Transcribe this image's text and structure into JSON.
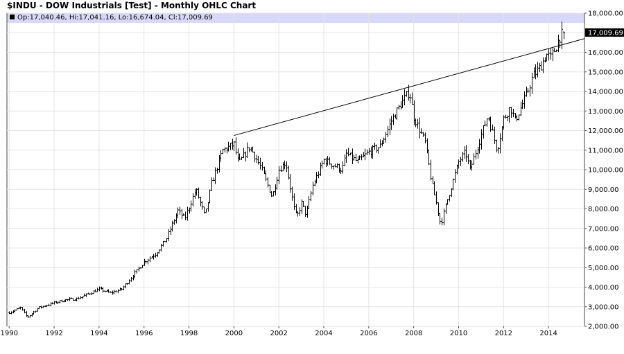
{
  "header": {
    "title": "$INDU - DOW Industrials [Test] - Monthly OHLC Chart",
    "ohlc_text": "Op:17,040.46, Hi:17,041.16, Lo:16,674.04, Cl:17,009.69"
  },
  "chart_data": {
    "type": "ohlc",
    "title": "$INDU - DOW Industrials [Test] - Monthly OHLC Chart",
    "xlabel": "",
    "ylabel": "",
    "xlim": [
      1989.9,
      2015.6
    ],
    "ylim": [
      2000,
      18000
    ],
    "x_ticks": [
      "1990",
      "1992",
      "1994",
      "1996",
      "1998",
      "2000",
      "2002",
      "2004",
      "2006",
      "2008",
      "2010",
      "2012",
      "2014"
    ],
    "y_ticks": [
      "18,000.00",
      "17,000.00",
      "16,000.00",
      "15,000.00",
      "14,000.00",
      "13,000.00",
      "12,000.00",
      "11,000.00",
      "10,000.00",
      "9,000.00",
      "8,000.00",
      "7,000.00",
      "6,000.00",
      "5,000.00",
      "4,000.00",
      "3,000.00",
      "2,000.00"
    ],
    "last_close_label": "17,009.69",
    "last_bar": {
      "open": 17040.46,
      "high": 17041.16,
      "low": 16674.04,
      "close": 17009.69
    },
    "grid": true,
    "trendline": {
      "x": [
        2000.0,
        2015.6
      ],
      "y": [
        11750,
        16700
      ]
    },
    "anchors": [
      [
        1990.0,
        2700
      ],
      [
        1990.5,
        2950
      ],
      [
        1990.8,
        2450
      ],
      [
        1991.3,
        2950
      ],
      [
        1992.0,
        3200
      ],
      [
        1992.5,
        3350
      ],
      [
        1993.0,
        3400
      ],
      [
        1994.0,
        3900
      ],
      [
        1994.5,
        3700
      ],
      [
        1995.0,
        3900
      ],
      [
        1996.0,
        5300
      ],
      [
        1996.5,
        5700
      ],
      [
        1997.0,
        6500
      ],
      [
        1997.5,
        7900
      ],
      [
        1997.8,
        7500
      ],
      [
        1998.3,
        9000
      ],
      [
        1998.7,
        7600
      ],
      [
        1999.0,
        9300
      ],
      [
        1999.5,
        11000
      ],
      [
        2000.0,
        11300
      ],
      [
        2000.2,
        10300
      ],
      [
        2000.7,
        11200
      ],
      [
        2001.2,
        10100
      ],
      [
        2001.7,
        8600
      ],
      [
        2002.0,
        10000
      ],
      [
        2002.3,
        10400
      ],
      [
        2002.7,
        7800
      ],
      [
        2002.8,
        7600
      ],
      [
        2003.0,
        8300
      ],
      [
        2003.2,
        7700
      ],
      [
        2003.5,
        9200
      ],
      [
        2004.0,
        10500
      ],
      [
        2004.8,
        10000
      ],
      [
        2005.0,
        10800
      ],
      [
        2005.5,
        10400
      ],
      [
        2006.0,
        10900
      ],
      [
        2006.5,
        11200
      ],
      [
        2007.0,
        12500
      ],
      [
        2007.5,
        13500
      ],
      [
        2007.8,
        14000
      ],
      [
        2008.0,
        12700
      ],
      [
        2008.5,
        11400
      ],
      [
        2008.8,
        9300
      ],
      [
        2009.0,
        8300
      ],
      [
        2009.2,
        7200
      ],
      [
        2009.5,
        8500
      ],
      [
        2010.0,
        10400
      ],
      [
        2010.3,
        10900
      ],
      [
        2010.5,
        10000
      ],
      [
        2011.0,
        11800
      ],
      [
        2011.3,
        12800
      ],
      [
        2011.7,
        11000
      ],
      [
        2012.0,
        12600
      ],
      [
        2012.3,
        13200
      ],
      [
        2012.5,
        12500
      ],
      [
        2013.0,
        13800
      ],
      [
        2013.3,
        14800
      ],
      [
        2013.6,
        15200
      ],
      [
        2013.9,
        15900
      ],
      [
        2014.1,
        15700
      ],
      [
        2014.5,
        16800
      ],
      [
        2014.7,
        17040
      ]
    ]
  }
}
